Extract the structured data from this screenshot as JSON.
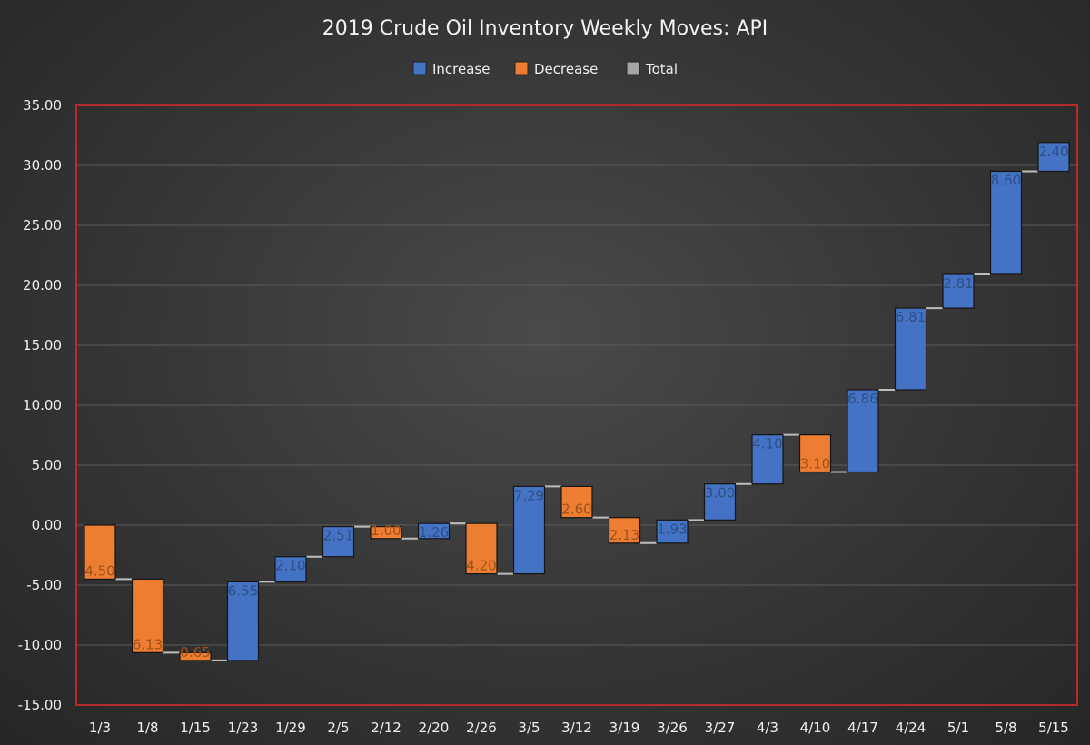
{
  "chart_data": {
    "type": "bar",
    "subtype": "waterfall",
    "title": "2019 Crude Oil Inventory Weekly Moves: API",
    "legend": {
      "position": "top",
      "entries": [
        {
          "name": "Increase",
          "color": "#4472c4"
        },
        {
          "name": "Decrease",
          "color": "#ed7d31"
        },
        {
          "name": "Total",
          "color": "#a5a5a5"
        }
      ]
    },
    "ylim": [
      -15,
      35
    ],
    "yticks": [
      "35.00",
      "30.00",
      "25.00",
      "20.00",
      "15.00",
      "10.00",
      "5.00",
      "0.00",
      "-5.00",
      "-10.00",
      "-15.00"
    ],
    "ytick_values": [
      35,
      30,
      25,
      20,
      15,
      10,
      5,
      0,
      -5,
      -10,
      -15
    ],
    "grid": true,
    "categories": [
      "1/3",
      "1/8",
      "1/15",
      "1/23",
      "1/29",
      "2/5",
      "2/12",
      "2/20",
      "2/26",
      "3/5",
      "3/12",
      "3/19",
      "3/26",
      "3/27",
      "4/3",
      "4/10",
      "4/17",
      "4/24",
      "5/1",
      "5/8",
      "5/15"
    ],
    "changes": [
      -4.5,
      -6.13,
      -0.65,
      6.55,
      2.1,
      2.51,
      -1.0,
      1.26,
      -4.2,
      7.29,
      -2.6,
      -2.13,
      1.93,
      3.0,
      4.1,
      -3.1,
      6.86,
      6.81,
      2.81,
      8.6,
      2.4
    ],
    "data_labels": [
      "4.50",
      "6.13",
      "0.65",
      "6.55",
      "2.10",
      "2.51",
      "1.00",
      "1.26",
      "4.20",
      "7.29",
      "2.60",
      "2.13",
      "1.93",
      "3.00",
      "4.10",
      "3.10",
      "6.86",
      "6.81",
      "2.81",
      "8.60",
      "2.40"
    ]
  }
}
